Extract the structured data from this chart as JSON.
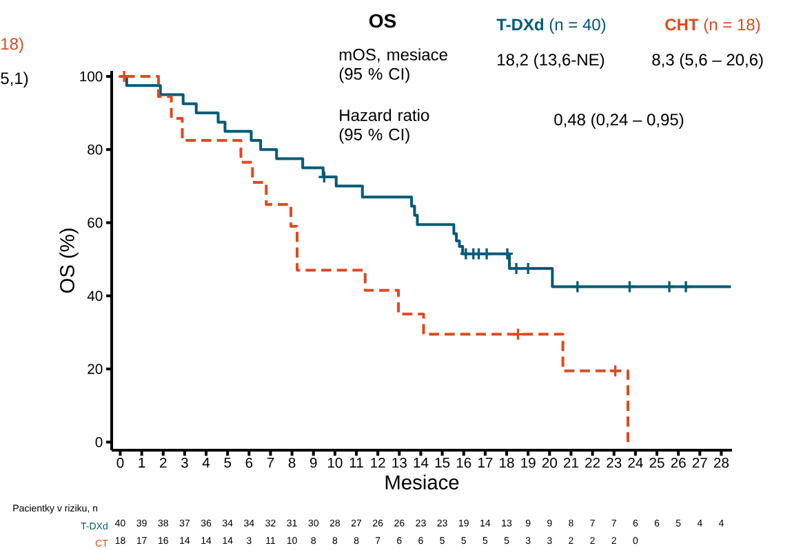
{
  "chart_data": {
    "type": "step",
    "title": "OS",
    "xlabel": "Mesiace",
    "ylabel": "OS (%)",
    "xlim": [
      -0.4,
      28.5
    ],
    "ylim": [
      -2.2,
      101.5
    ],
    "xticks": [
      0,
      1,
      2,
      3,
      4,
      5,
      6,
      7,
      8,
      9,
      10,
      11,
      12,
      13,
      14,
      15,
      16,
      17,
      18,
      19,
      20,
      21,
      22,
      23,
      24,
      25,
      26,
      27,
      28
    ],
    "yticks": [
      0,
      20,
      40,
      60,
      80,
      100
    ],
    "series": [
      {
        "name": "**T-DXd** (n = 40)",
        "color": "#005a78",
        "line_style": "solid",
        "x": [
          0,
          0.3,
          1.87,
          2.93,
          3.54,
          4.56,
          4.88,
          6.1,
          6.54,
          7.28,
          8.5,
          9.45,
          10.06,
          11.28,
          13.57,
          13.71,
          13.84,
          15.54,
          15.66,
          15.8,
          15.95,
          18.13,
          20.13,
          28.45
        ],
        "values": [
          100,
          97.5,
          95,
          92.5,
          90,
          87.5,
          85,
          82.5,
          80,
          77.5,
          75,
          72.5,
          70,
          67,
          64.5,
          62,
          59.5,
          57,
          55,
          53.5,
          51.5,
          47.5,
          42.5,
          42.5
        ]
      },
      {
        "name": "**CHT** (n = 18)",
        "color": "#e0481f",
        "line_style": "dashed",
        "x": [
          0,
          1.78,
          2.38,
          2.89,
          5.62,
          6.16,
          6.8,
          7.95,
          8.24,
          11.41,
          12.96,
          14.13,
          20.62,
          23.65
        ],
        "values": [
          100,
          94.5,
          88.5,
          82.5,
          76.5,
          71,
          65,
          59,
          47,
          41.5,
          35,
          29.5,
          19.5,
          0
        ]
      },
      {
        "type": "scatter",
        "color": "#005a78",
        "marker": "cross",
        "x": [
          9.5,
          16.1,
          16.45,
          16.7,
          17.07,
          18.03,
          18.45,
          19.0,
          21.3,
          23.73,
          25.58,
          26.35
        ],
        "values": [
          72.5,
          51.5,
          51.5,
          51.5,
          51.5,
          51.5,
          47.5,
          47.5,
          42.5,
          42.5,
          42.5,
          42.5
        ]
      },
      {
        "type": "scatter",
        "color": "#e0481f",
        "marker": "cross",
        "x": [
          0.18,
          18.53,
          23.06
        ],
        "values": [
          100,
          29.5,
          19.5
        ]
      }
    ],
    "annotations": [
      "mOS, mesiace (95 % CI)",
      "18,2 (13,6-NE)",
      "8,3 (5,6 – 20,6)",
      "Hazard ratio (95 % CI)",
      "0,48 (0,24 – 0,95)",
      "18)",
      "5,1)",
      "Pacientky v riziku, n",
      "T-DXd",
      "CT",
      "40",
      "39",
      "38",
      "37",
      "36",
      "34",
      "34",
      "32",
      "31",
      "30",
      "28",
      "27",
      "26",
      "26",
      "23",
      "23",
      "19",
      "14",
      "13",
      "9",
      "9",
      "8",
      "7",
      "7",
      "6",
      "6",
      "5",
      "4",
      "4",
      "18",
      "17",
      "16",
      "14",
      "14",
      "14",
      "3",
      "11",
      "10",
      "8",
      "8",
      "8",
      "7",
      "6",
      "6",
      "5",
      "5",
      "5",
      "5",
      "3",
      "3",
      "2",
      "2",
      "2",
      "0"
    ]
  }
}
